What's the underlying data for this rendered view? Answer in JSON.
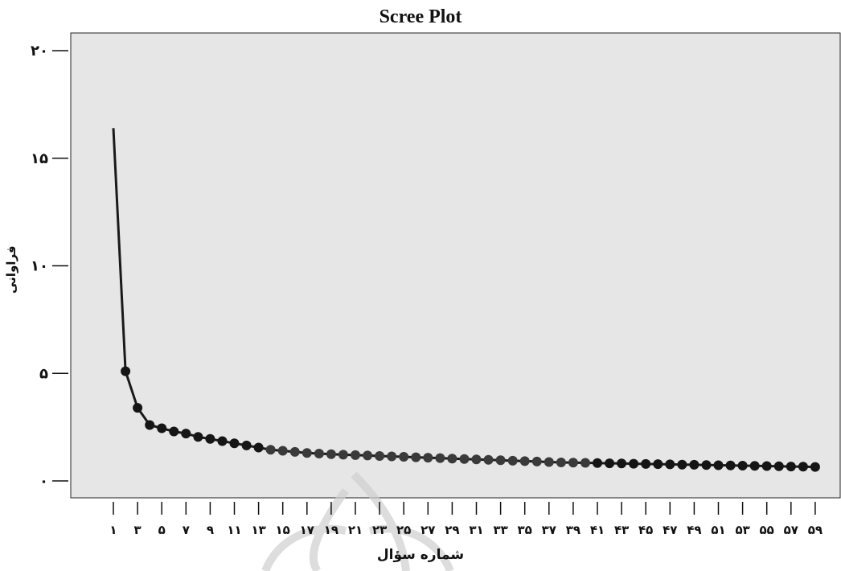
{
  "chart_data": {
    "type": "line",
    "title": "Scree Plot",
    "xlabel": "شماره سؤال",
    "ylabel": "فراوانی",
    "ylim": [
      0,
      21
    ],
    "y_ticks": [
      0,
      5,
      10,
      15,
      20
    ],
    "y_tick_labels": [
      "۰",
      "۵",
      "۱۰",
      "۱۵",
      "۲۰"
    ],
    "x_tick_values": [
      1,
      3,
      5,
      7,
      9,
      11,
      13,
      15,
      17,
      19,
      21,
      23,
      25,
      27,
      29,
      31,
      33,
      35,
      37,
      39,
      41,
      43,
      45,
      47,
      49,
      51,
      53,
      55,
      57,
      59
    ],
    "x_tick_labels": [
      "۱",
      "۳",
      "۵",
      "۷",
      "۹",
      "۱۱",
      "۱۳",
      "۱۵",
      "۱۷",
      "۱۹",
      "۲۱",
      "۲۳",
      "۲۵",
      "۲۷",
      "۲۹",
      "۳۱",
      "۳۳",
      "۳۵",
      "۳۷",
      "۳۹",
      "۴۱",
      "۴۳",
      "۴۵",
      "۴۷",
      "۴۹",
      "۵۱",
      "۵۳",
      "۵۵",
      "۵۷",
      "۵۹"
    ],
    "grid": false,
    "x": [
      1,
      2,
      3,
      4,
      5,
      6,
      7,
      8,
      9,
      10,
      11,
      12,
      13,
      14,
      15,
      16,
      17,
      18,
      19,
      20,
      21,
      22,
      23,
      24,
      25,
      26,
      27,
      28,
      29,
      30,
      31,
      32,
      33,
      34,
      35,
      36,
      37,
      38,
      39,
      40,
      41,
      42,
      43,
      44,
      45,
      46,
      47,
      48,
      49,
      50,
      51,
      52,
      53,
      54,
      55,
      56,
      57,
      58,
      59
    ],
    "values": [
      16.4,
      5.1,
      3.4,
      2.6,
      2.45,
      2.3,
      2.2,
      2.05,
      1.95,
      1.85,
      1.75,
      1.65,
      1.55,
      1.45,
      1.4,
      1.35,
      1.3,
      1.27,
      1.24,
      1.22,
      1.2,
      1.18,
      1.16,
      1.14,
      1.12,
      1.1,
      1.08,
      1.06,
      1.04,
      1.02,
      1.0,
      0.98,
      0.96,
      0.94,
      0.92,
      0.9,
      0.88,
      0.86,
      0.85,
      0.84,
      0.83,
      0.82,
      0.81,
      0.8,
      0.79,
      0.78,
      0.77,
      0.76,
      0.75,
      0.74,
      0.73,
      0.72,
      0.71,
      0.7,
      0.69,
      0.68,
      0.67,
      0.66,
      0.65
    ]
  }
}
